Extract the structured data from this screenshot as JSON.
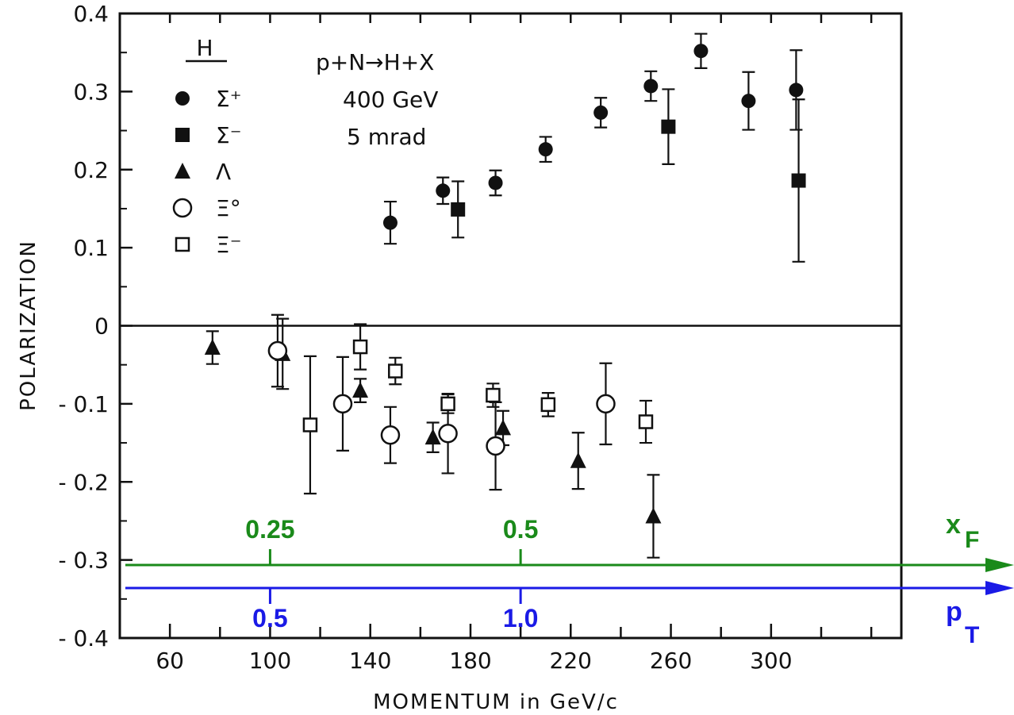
{
  "chart_data": {
    "type": "scatter",
    "title": "",
    "xlabel": "MOMENTUM in GeV/c",
    "ylabel": "POLARIZATION",
    "xlim": [
      40,
      352
    ],
    "ylim": [
      -0.4,
      0.4
    ],
    "x_ticks": [
      "60",
      "100",
      "140",
      "180",
      "220",
      "260",
      "300"
    ],
    "y_ticks": [
      "0.4",
      "0.3",
      "0.2",
      "0.1",
      "0",
      "-0.1",
      "-0.2",
      "-0.3",
      "-0.4"
    ],
    "reaction": "p+N→H+X",
    "beam_energy": "400 GeV",
    "angle": "5 mrad",
    "legend_title": "H",
    "legend": [
      {
        "marker": "filled-circle",
        "label": "Σ⁺"
      },
      {
        "marker": "filled-square",
        "label": "Σ⁻"
      },
      {
        "marker": "filled-triangle",
        "label": "Λ"
      },
      {
        "marker": "open-circle",
        "label": "Ξ°"
      },
      {
        "marker": "open-square",
        "label": "Ξ⁻"
      }
    ],
    "series": [
      {
        "name": "Σ⁺",
        "marker": "filled-circle",
        "points": [
          {
            "x": 148,
            "y": 0.132,
            "err": 0.027
          },
          {
            "x": 169,
            "y": 0.173,
            "err": 0.017
          },
          {
            "x": 190,
            "y": 0.183,
            "err": 0.016
          },
          {
            "x": 210,
            "y": 0.226,
            "err": 0.016
          },
          {
            "x": 232,
            "y": 0.273,
            "err": 0.019
          },
          {
            "x": 252,
            "y": 0.307,
            "err": 0.019
          },
          {
            "x": 272,
            "y": 0.352,
            "err": 0.022
          },
          {
            "x": 291,
            "y": 0.288,
            "err": 0.037
          },
          {
            "x": 310,
            "y": 0.302,
            "err": 0.051
          }
        ]
      },
      {
        "name": "Σ⁻",
        "marker": "filled-square",
        "points": [
          {
            "x": 175,
            "y": 0.149,
            "err": 0.036
          },
          {
            "x": 259,
            "y": 0.255,
            "err": 0.048
          },
          {
            "x": 311,
            "y": 0.186,
            "err": 0.104
          }
        ]
      },
      {
        "name": "Λ",
        "marker": "filled-triangle",
        "points": [
          {
            "x": 77,
            "y": -0.028,
            "err": 0.021
          },
          {
            "x": 105,
            "y": -0.036,
            "err": 0.045
          },
          {
            "x": 136,
            "y": -0.083,
            "err": 0.015
          },
          {
            "x": 165,
            "y": -0.143,
            "err": 0.019
          },
          {
            "x": 193,
            "y": -0.131,
            "err": 0.022
          },
          {
            "x": 223,
            "y": -0.173,
            "err": 0.036
          },
          {
            "x": 253,
            "y": -0.244,
            "err": 0.053
          }
        ]
      },
      {
        "name": "Ξ°",
        "marker": "open-circle",
        "points": [
          {
            "x": 103,
            "y": -0.032,
            "err": 0.046
          },
          {
            "x": 129,
            "y": -0.1,
            "err": 0.06
          },
          {
            "x": 148,
            "y": -0.14,
            "err": 0.036
          },
          {
            "x": 171,
            "y": -0.138,
            "err": 0.051
          },
          {
            "x": 190,
            "y": -0.154,
            "err": 0.056
          },
          {
            "x": 234,
            "y": -0.1,
            "err": 0.052
          }
        ]
      },
      {
        "name": "Ξ⁻",
        "marker": "open-square",
        "points": [
          {
            "x": 116,
            "y": -0.127,
            "err": 0.088
          },
          {
            "x": 136,
            "y": -0.027,
            "err": 0.029
          },
          {
            "x": 150,
            "y": -0.058,
            "err": 0.017
          },
          {
            "x": 171,
            "y": -0.1,
            "err": 0.012
          },
          {
            "x": 189,
            "y": -0.089,
            "err": 0.015
          },
          {
            "x": 211,
            "y": -0.101,
            "err": 0.015
          },
          {
            "x": 250,
            "y": -0.123,
            "err": 0.027
          }
        ]
      }
    ],
    "xF_axis": {
      "name": "x",
      "subscript": "F",
      "color": "#1a8a1a",
      "ticks": [
        {
          "label": "0.25",
          "momentum": 100
        },
        {
          "label": "0.5",
          "momentum": 200
        }
      ]
    },
    "pT_axis": {
      "name": "p",
      "subscript": "T",
      "color": "#1a1ae6",
      "ticks": [
        {
          "label": "0.5",
          "momentum": 100
        },
        {
          "label": "1.0",
          "momentum": 200
        }
      ]
    }
  }
}
